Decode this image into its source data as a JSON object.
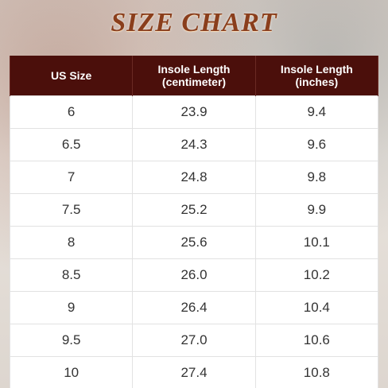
{
  "header": {
    "title": "SIZE CHART"
  },
  "table": {
    "columns": [
      "US Size",
      "Insole Length\n(centimeter)",
      "Insole Length\n(inches)"
    ],
    "rows": [
      [
        "6",
        "23.9",
        "9.4"
      ],
      [
        "6.5",
        "24.3",
        "9.6"
      ],
      [
        "7",
        "24.8",
        "9.8"
      ],
      [
        "7.5",
        "25.2",
        "9.9"
      ],
      [
        "8",
        "25.6",
        "10.1"
      ],
      [
        "8.5",
        "26.0",
        "10.2"
      ],
      [
        "9",
        "26.4",
        "10.4"
      ],
      [
        "9.5",
        "27.0",
        "10.6"
      ],
      [
        "10",
        "27.4",
        "10.8"
      ]
    ]
  }
}
